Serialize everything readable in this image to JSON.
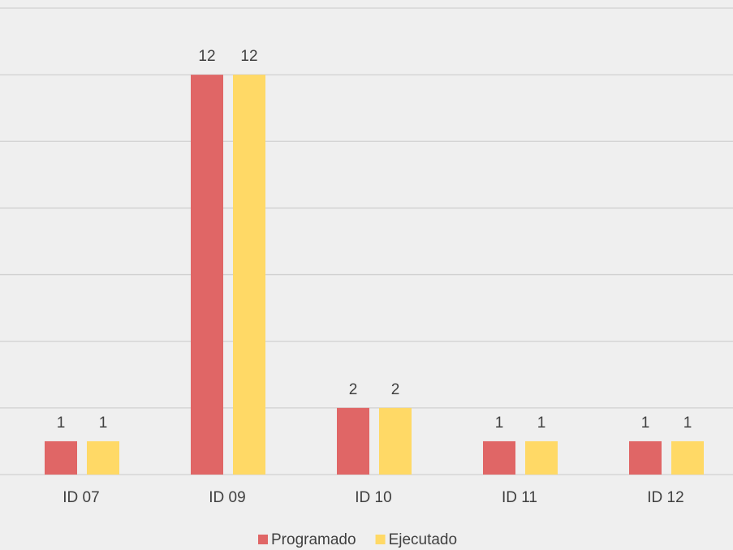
{
  "chart_data": {
    "type": "bar",
    "categories": [
      "ID 07",
      "ID 09",
      "ID 10",
      "ID 11",
      "ID 12"
    ],
    "series": [
      {
        "name": "Programado",
        "color": "#e06666",
        "values": [
          1,
          12,
          2,
          1,
          1
        ]
      },
      {
        "name": "Ejecutado",
        "color": "#ffd966",
        "values": [
          1,
          12,
          2,
          1,
          1
        ]
      }
    ],
    "ylim": [
      0,
      14
    ],
    "yticks": [
      0,
      2,
      4,
      6,
      8,
      10,
      12,
      14
    ],
    "grid": true,
    "legend": "bottom"
  }
}
